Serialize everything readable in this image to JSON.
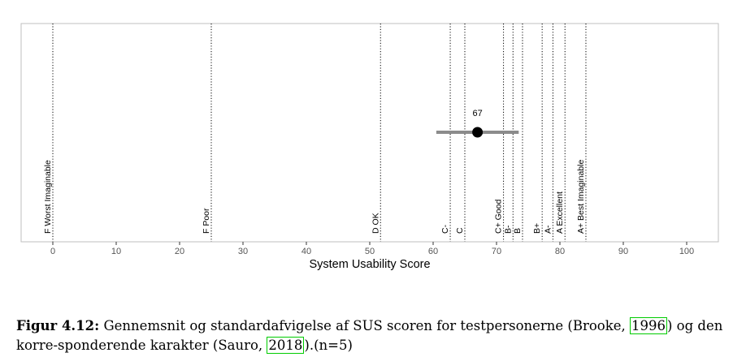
{
  "chart_data": {
    "type": "scatter",
    "xlabel": "System Usability Score",
    "xlim": [
      -5,
      105
    ],
    "xticks": [
      0,
      10,
      20,
      30,
      40,
      50,
      60,
      70,
      80,
      90,
      100
    ],
    "point": {
      "mean": 67,
      "label": "67",
      "sd_low": 60.5,
      "sd_high": 73.5
    },
    "reference_lines": [
      {
        "x": 0,
        "label": "F   Worst Imaginable"
      },
      {
        "x": 25,
        "label": "F Poor"
      },
      {
        "x": 51.7,
        "label": "D   OK"
      },
      {
        "x": 62.7,
        "label": "C-"
      },
      {
        "x": 65,
        "label": "C"
      },
      {
        "x": 71.1,
        "label": "C+   Good"
      },
      {
        "x": 72.6,
        "label": "B-"
      },
      {
        "x": 74.1,
        "label": "B"
      },
      {
        "x": 77.2,
        "label": "B+"
      },
      {
        "x": 78.9,
        "label": "A-"
      },
      {
        "x": 80.8,
        "label": "A   Excellent"
      },
      {
        "x": 84.1,
        "label": "A+   Best Imaginable"
      }
    ],
    "colors": {
      "errorbar": "#8c8c8c",
      "point": "#000000",
      "frame": "#bfbfbf",
      "refline": "#000000"
    },
    "grid": false
  },
  "caption": {
    "label": "Figur 4.12:",
    "text1": " Gennemsnit og standardafvigelse af SUS scoren for testpersonerne (Brooke, ",
    "cite1": "1996",
    "text2": ") og den korre-sponderende karakter (Sauro, ",
    "cite2": "2018",
    "text3": ").(n=5)"
  }
}
